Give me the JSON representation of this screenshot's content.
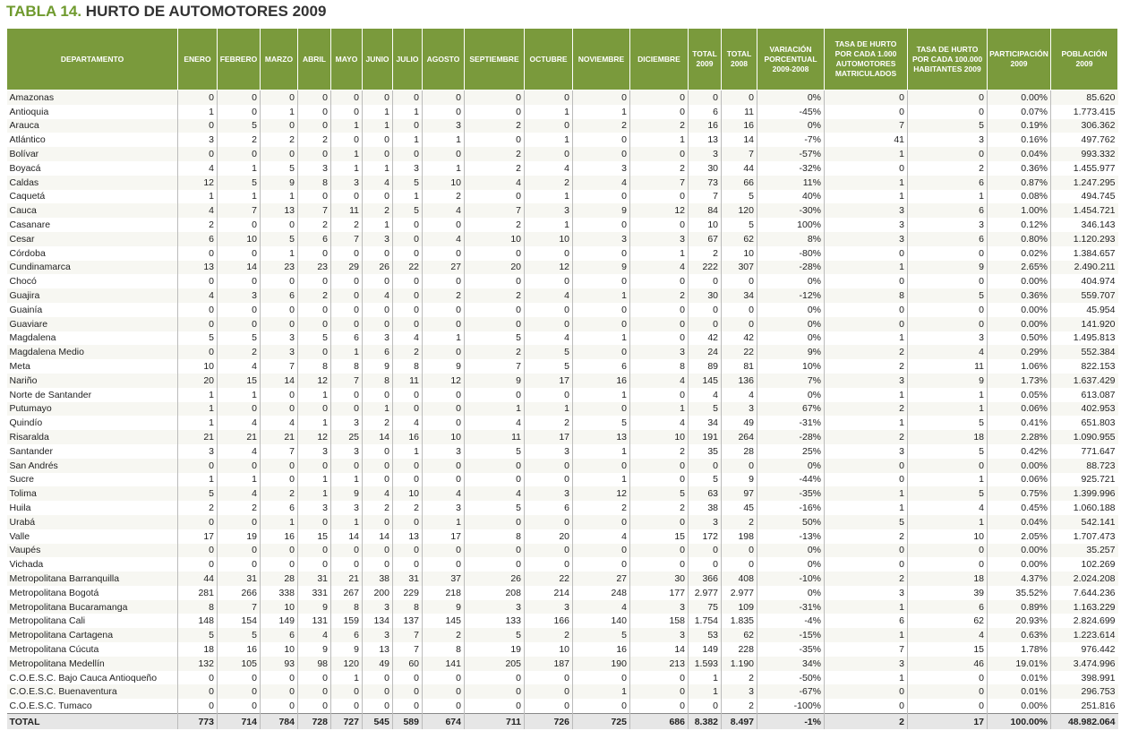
{
  "title": {
    "label": "TABLA 14.",
    "text": "HURTO DE AUTOMOTORES 2009"
  },
  "table": {
    "headers": [
      "DEPARTAMENTO",
      "ENERO",
      "FEBRERO",
      "MARZO",
      "ABRIL",
      "MAYO",
      "JUNIO",
      "JULIO",
      "AGOSTO",
      "SEPTIEMBRE",
      "OCTUBRE",
      "NOVIEMBRE",
      "DICIEMBRE",
      "TOTAL\n2009",
      "TOTAL\n2008",
      "VARIACIÓN\nPORCENTUAL\n2009-2008",
      "TASA DE HURTO\nPOR CADA 1.000\nAUTOMOTORES\nMATRICULADOS",
      "TASA DE HURTO\nPOR CADA 100.000\nHABITANTES 2009",
      "PARTICIPACIÓN\n2009",
      "POBLACIÓN\n2009"
    ],
    "rows": [
      [
        "Amazonas",
        "0",
        "0",
        "0",
        "0",
        "0",
        "0",
        "0",
        "0",
        "0",
        "0",
        "0",
        "0",
        "0",
        "0",
        "0%",
        "0",
        "0",
        "0.00%",
        "85.620"
      ],
      [
        "Antioquia",
        "1",
        "0",
        "1",
        "0",
        "0",
        "1",
        "1",
        "0",
        "0",
        "1",
        "1",
        "0",
        "6",
        "11",
        "-45%",
        "0",
        "0",
        "0.07%",
        "1.773.415"
      ],
      [
        "Arauca",
        "0",
        "5",
        "0",
        "0",
        "1",
        "1",
        "0",
        "3",
        "2",
        "0",
        "2",
        "2",
        "16",
        "16",
        "0%",
        "7",
        "5",
        "0.19%",
        "306.362"
      ],
      [
        "Atlántico",
        "3",
        "2",
        "2",
        "2",
        "0",
        "0",
        "1",
        "1",
        "0",
        "1",
        "0",
        "1",
        "13",
        "14",
        "-7%",
        "41",
        "3",
        "0.16%",
        "497.762"
      ],
      [
        "Bolívar",
        "0",
        "0",
        "0",
        "0",
        "1",
        "0",
        "0",
        "0",
        "2",
        "0",
        "0",
        "0",
        "3",
        "7",
        "-57%",
        "1",
        "0",
        "0.04%",
        "993.332"
      ],
      [
        "Boyacá",
        "4",
        "1",
        "5",
        "3",
        "1",
        "1",
        "3",
        "1",
        "2",
        "4",
        "3",
        "2",
        "30",
        "44",
        "-32%",
        "0",
        "2",
        "0.36%",
        "1.455.977"
      ],
      [
        "Caldas",
        "12",
        "5",
        "9",
        "8",
        "3",
        "4",
        "5",
        "10",
        "4",
        "2",
        "4",
        "7",
        "73",
        "66",
        "11%",
        "1",
        "6",
        "0.87%",
        "1.247.295"
      ],
      [
        "Caquetá",
        "1",
        "1",
        "1",
        "0",
        "0",
        "0",
        "1",
        "2",
        "0",
        "1",
        "0",
        "0",
        "7",
        "5",
        "40%",
        "1",
        "1",
        "0.08%",
        "494.745"
      ],
      [
        "Cauca",
        "4",
        "7",
        "13",
        "7",
        "11",
        "2",
        "5",
        "4",
        "7",
        "3",
        "9",
        "12",
        "84",
        "120",
        "-30%",
        "3",
        "6",
        "1.00%",
        "1.454.721"
      ],
      [
        "Casanare",
        "2",
        "0",
        "0",
        "2",
        "2",
        "1",
        "0",
        "0",
        "2",
        "1",
        "0",
        "0",
        "10",
        "5",
        "100%",
        "3",
        "3",
        "0.12%",
        "346.143"
      ],
      [
        "Cesar",
        "6",
        "10",
        "5",
        "6",
        "7",
        "3",
        "0",
        "4",
        "10",
        "10",
        "3",
        "3",
        "67",
        "62",
        "8%",
        "3",
        "6",
        "0.80%",
        "1.120.293"
      ],
      [
        "Córdoba",
        "0",
        "0",
        "1",
        "0",
        "0",
        "0",
        "0",
        "0",
        "0",
        "0",
        "0",
        "1",
        "2",
        "10",
        "-80%",
        "0",
        "0",
        "0.02%",
        "1.384.657"
      ],
      [
        "Cundinamarca",
        "13",
        "14",
        "23",
        "23",
        "29",
        "26",
        "22",
        "27",
        "20",
        "12",
        "9",
        "4",
        "222",
        "307",
        "-28%",
        "1",
        "9",
        "2.65%",
        "2.490.211"
      ],
      [
        "Chocó",
        "0",
        "0",
        "0",
        "0",
        "0",
        "0",
        "0",
        "0",
        "0",
        "0",
        "0",
        "0",
        "0",
        "0",
        "0%",
        "0",
        "0",
        "0.00%",
        "404.974"
      ],
      [
        "Guajira",
        "4",
        "3",
        "6",
        "2",
        "0",
        "4",
        "0",
        "2",
        "2",
        "4",
        "1",
        "2",
        "30",
        "34",
        "-12%",
        "8",
        "5",
        "0.36%",
        "559.707"
      ],
      [
        "Guainía",
        "0",
        "0",
        "0",
        "0",
        "0",
        "0",
        "0",
        "0",
        "0",
        "0",
        "0",
        "0",
        "0",
        "0",
        "0%",
        "0",
        "0",
        "0.00%",
        "45.954"
      ],
      [
        "Guaviare",
        "0",
        "0",
        "0",
        "0",
        "0",
        "0",
        "0",
        "0",
        "0",
        "0",
        "0",
        "0",
        "0",
        "0",
        "0%",
        "0",
        "0",
        "0.00%",
        "141.920"
      ],
      [
        "Magdalena",
        "5",
        "5",
        "3",
        "5",
        "6",
        "3",
        "4",
        "1",
        "5",
        "4",
        "1",
        "0",
        "42",
        "42",
        "0%",
        "1",
        "3",
        "0.50%",
        "1.495.813"
      ],
      [
        "Magdalena Medio",
        "0",
        "2",
        "3",
        "0",
        "1",
        "6",
        "2",
        "0",
        "2",
        "5",
        "0",
        "3",
        "24",
        "22",
        "9%",
        "2",
        "4",
        "0.29%",
        "552.384"
      ],
      [
        "Meta",
        "10",
        "4",
        "7",
        "8",
        "8",
        "9",
        "8",
        "9",
        "7",
        "5",
        "6",
        "8",
        "89",
        "81",
        "10%",
        "2",
        "11",
        "1.06%",
        "822.153"
      ],
      [
        "Nariño",
        "20",
        "15",
        "14",
        "12",
        "7",
        "8",
        "11",
        "12",
        "9",
        "17",
        "16",
        "4",
        "145",
        "136",
        "7%",
        "3",
        "9",
        "1.73%",
        "1.637.429"
      ],
      [
        "Norte de Santander",
        "1",
        "1",
        "0",
        "1",
        "0",
        "0",
        "0",
        "0",
        "0",
        "0",
        "1",
        "0",
        "4",
        "4",
        "0%",
        "1",
        "1",
        "0.05%",
        "613.087"
      ],
      [
        "Putumayo",
        "1",
        "0",
        "0",
        "0",
        "0",
        "1",
        "0",
        "0",
        "1",
        "1",
        "0",
        "1",
        "5",
        "3",
        "67%",
        "2",
        "1",
        "0.06%",
        "402.953"
      ],
      [
        "Quindío",
        "1",
        "4",
        "4",
        "1",
        "3",
        "2",
        "4",
        "0",
        "4",
        "2",
        "5",
        "4",
        "34",
        "49",
        "-31%",
        "1",
        "5",
        "0.41%",
        "651.803"
      ],
      [
        "Risaralda",
        "21",
        "21",
        "21",
        "12",
        "25",
        "14",
        "16",
        "10",
        "11",
        "17",
        "13",
        "10",
        "191",
        "264",
        "-28%",
        "2",
        "18",
        "2.28%",
        "1.090.955"
      ],
      [
        "Santander",
        "3",
        "4",
        "7",
        "3",
        "3",
        "0",
        "1",
        "3",
        "5",
        "3",
        "1",
        "2",
        "35",
        "28",
        "25%",
        "3",
        "5",
        "0.42%",
        "771.647"
      ],
      [
        "San Andrés",
        "0",
        "0",
        "0",
        "0",
        "0",
        "0",
        "0",
        "0",
        "0",
        "0",
        "0",
        "0",
        "0",
        "0",
        "0%",
        "0",
        "0",
        "0.00%",
        "88.723"
      ],
      [
        "Sucre",
        "1",
        "1",
        "0",
        "1",
        "1",
        "0",
        "0",
        "0",
        "0",
        "0",
        "1",
        "0",
        "5",
        "9",
        "-44%",
        "0",
        "1",
        "0.06%",
        "925.721"
      ],
      [
        "Tolima",
        "5",
        "4",
        "2",
        "1",
        "9",
        "4",
        "10",
        "4",
        "4",
        "3",
        "12",
        "5",
        "63",
        "97",
        "-35%",
        "1",
        "5",
        "0.75%",
        "1.399.996"
      ],
      [
        "Huila",
        "2",
        "2",
        "6",
        "3",
        "3",
        "2",
        "2",
        "3",
        "5",
        "6",
        "2",
        "2",
        "38",
        "45",
        "-16%",
        "1",
        "4",
        "0.45%",
        "1.060.188"
      ],
      [
        "Urabá",
        "0",
        "0",
        "1",
        "0",
        "1",
        "0",
        "0",
        "1",
        "0",
        "0",
        "0",
        "0",
        "3",
        "2",
        "50%",
        "5",
        "1",
        "0.04%",
        "542.141"
      ],
      [
        "Valle",
        "17",
        "19",
        "16",
        "15",
        "14",
        "14",
        "13",
        "17",
        "8",
        "20",
        "4",
        "15",
        "172",
        "198",
        "-13%",
        "2",
        "10",
        "2.05%",
        "1.707.473"
      ],
      [
        "Vaupés",
        "0",
        "0",
        "0",
        "0",
        "0",
        "0",
        "0",
        "0",
        "0",
        "0",
        "0",
        "0",
        "0",
        "0",
        "0%",
        "0",
        "0",
        "0.00%",
        "35.257"
      ],
      [
        "Vichada",
        "0",
        "0",
        "0",
        "0",
        "0",
        "0",
        "0",
        "0",
        "0",
        "0",
        "0",
        "0",
        "0",
        "0",
        "0%",
        "0",
        "0",
        "0.00%",
        "102.269"
      ],
      [
        "Metropolitana Barranquilla",
        "44",
        "31",
        "28",
        "31",
        "21",
        "38",
        "31",
        "37",
        "26",
        "22",
        "27",
        "30",
        "366",
        "408",
        "-10%",
        "2",
        "18",
        "4.37%",
        "2.024.208"
      ],
      [
        "Metropolitana Bogotá",
        "281",
        "266",
        "338",
        "331",
        "267",
        "200",
        "229",
        "218",
        "208",
        "214",
        "248",
        "177",
        "2.977",
        "2.977",
        "0%",
        "3",
        "39",
        "35.52%",
        "7.644.236"
      ],
      [
        "Metropolitana Bucaramanga",
        "8",
        "7",
        "10",
        "9",
        "8",
        "3",
        "8",
        "9",
        "3",
        "3",
        "4",
        "3",
        "75",
        "109",
        "-31%",
        "1",
        "6",
        "0.89%",
        "1.163.229"
      ],
      [
        "Metropolitana Cali",
        "148",
        "154",
        "149",
        "131",
        "159",
        "134",
        "137",
        "145",
        "133",
        "166",
        "140",
        "158",
        "1.754",
        "1.835",
        "-4%",
        "6",
        "62",
        "20.93%",
        "2.824.699"
      ],
      [
        "Metropolitana Cartagena",
        "5",
        "5",
        "6",
        "4",
        "6",
        "3",
        "7",
        "2",
        "5",
        "2",
        "5",
        "3",
        "53",
        "62",
        "-15%",
        "1",
        "4",
        "0.63%",
        "1.223.614"
      ],
      [
        "Metropolitana Cúcuta",
        "18",
        "16",
        "10",
        "9",
        "9",
        "13",
        "7",
        "8",
        "19",
        "10",
        "16",
        "14",
        "149",
        "228",
        "-35%",
        "7",
        "15",
        "1.78%",
        "976.442"
      ],
      [
        "Metropolitana Medellín",
        "132",
        "105",
        "93",
        "98",
        "120",
        "49",
        "60",
        "141",
        "205",
        "187",
        "190",
        "213",
        "1.593",
        "1.190",
        "34%",
        "3",
        "46",
        "19.01%",
        "3.474.996"
      ],
      [
        "C.O.E.S.C. Bajo Cauca Antioqueño",
        "0",
        "0",
        "0",
        "0",
        "1",
        "0",
        "0",
        "0",
        "0",
        "0",
        "0",
        "0",
        "1",
        "2",
        "-50%",
        "1",
        "0",
        "0.01%",
        "398.991"
      ],
      [
        "C.O.E.S.C. Buenaventura",
        "0",
        "0",
        "0",
        "0",
        "0",
        "0",
        "0",
        "0",
        "0",
        "0",
        "1",
        "0",
        "1",
        "3",
        "-67%",
        "0",
        "0",
        "0.01%",
        "296.753"
      ],
      [
        "C.O.E.S.C. Tumaco",
        "0",
        "0",
        "0",
        "0",
        "0",
        "0",
        "0",
        "0",
        "0",
        "0",
        "0",
        "0",
        "0",
        "2",
        "-100%",
        "0",
        "0",
        "0.00%",
        "251.816"
      ]
    ],
    "total": [
      "TOTAL",
      "773",
      "714",
      "784",
      "728",
      "727",
      "545",
      "589",
      "674",
      "711",
      "726",
      "725",
      "686",
      "8.382",
      "8.497",
      "-1%",
      "2",
      "17",
      "100.00%",
      "48.982.064"
    ]
  }
}
